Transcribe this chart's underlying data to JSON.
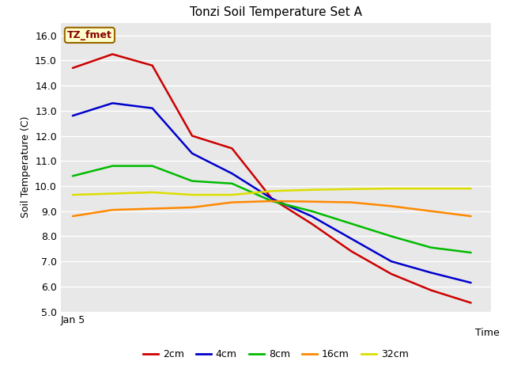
{
  "title": "Tonzi Soil Temperature Set A",
  "xlabel": "Time",
  "ylabel": "Soil Temperature (C)",
  "annotation_text": "TZ_fmet",
  "annotation_bg": "#ffffcc",
  "annotation_border": "#996600",
  "annotation_text_color": "#880000",
  "ylim": [
    5.0,
    16.5
  ],
  "yticks": [
    5.0,
    6.0,
    7.0,
    8.0,
    9.0,
    10.0,
    11.0,
    12.0,
    13.0,
    14.0,
    15.0,
    16.0
  ],
  "x_label_first": "Jan 5",
  "figure_bg": "#ffffff",
  "plot_bg": "#e8e8e8",
  "grid_color": "#ffffff",
  "series": {
    "2cm": {
      "color": "#cc0000",
      "x": [
        0,
        1,
        2,
        3,
        4,
        5,
        6,
        7,
        8,
        9,
        10
      ],
      "y": [
        14.7,
        15.25,
        14.8,
        12.0,
        11.5,
        9.5,
        8.5,
        7.4,
        6.5,
        5.85,
        5.35
      ]
    },
    "4cm": {
      "color": "#0000cc",
      "x": [
        0,
        1,
        2,
        3,
        4,
        5,
        6,
        7,
        8,
        9,
        10
      ],
      "y": [
        12.8,
        13.3,
        13.1,
        11.3,
        10.5,
        9.5,
        8.8,
        7.9,
        7.0,
        6.55,
        6.15
      ]
    },
    "8cm": {
      "color": "#00bb00",
      "x": [
        0,
        1,
        2,
        3,
        4,
        5,
        6,
        7,
        8,
        9,
        10
      ],
      "y": [
        10.4,
        10.8,
        10.8,
        10.2,
        10.1,
        9.4,
        9.0,
        8.5,
        8.0,
        7.55,
        7.35
      ]
    },
    "16cm": {
      "color": "#ff8800",
      "x": [
        0,
        1,
        2,
        3,
        4,
        5,
        6,
        7,
        8,
        9,
        10
      ],
      "y": [
        8.8,
        9.05,
        9.1,
        9.15,
        9.35,
        9.4,
        9.38,
        9.35,
        9.2,
        9.0,
        8.8
      ]
    },
    "32cm": {
      "color": "#dddd00",
      "x": [
        0,
        1,
        2,
        3,
        4,
        5,
        6,
        7,
        8,
        9,
        10
      ],
      "y": [
        9.65,
        9.7,
        9.75,
        9.65,
        9.65,
        9.8,
        9.85,
        9.88,
        9.9,
        9.9,
        9.9
      ]
    }
  },
  "legend_entries": [
    "2cm",
    "4cm",
    "8cm",
    "16cm",
    "32cm"
  ],
  "legend_colors": [
    "#cc0000",
    "#0000cc",
    "#00bb00",
    "#ff8800",
    "#dddd00"
  ]
}
